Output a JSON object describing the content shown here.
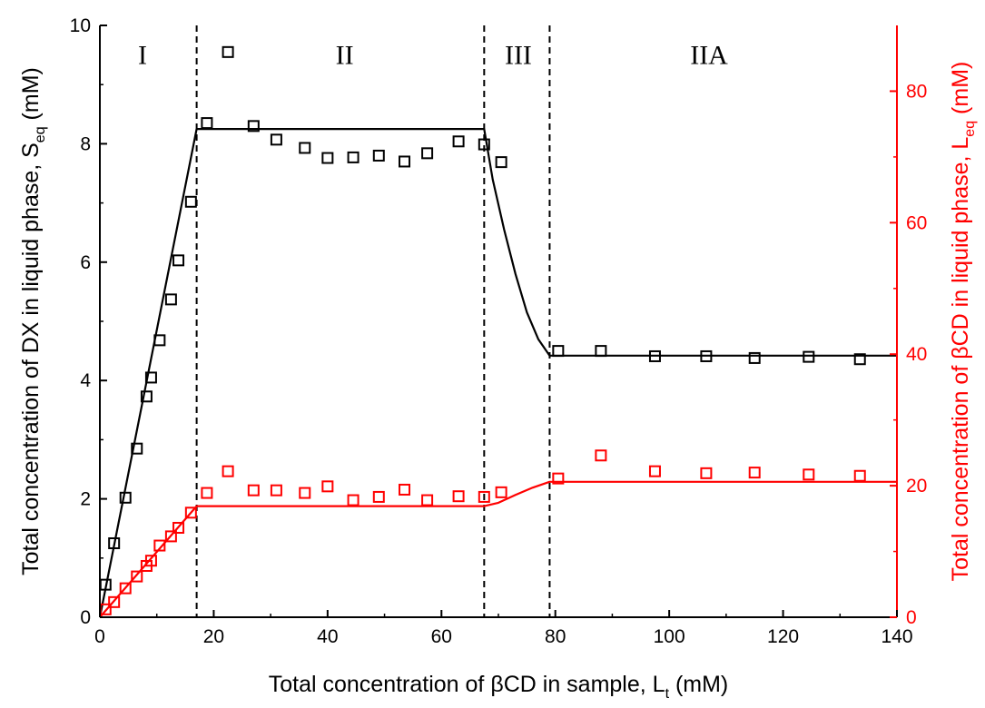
{
  "chart_data": {
    "type": "scatter",
    "x_axis": {
      "label_main": "Total concentration of βCD in sample, L",
      "label_sub": "t",
      "label_unit": " (mM)",
      "range": [
        0,
        140
      ],
      "ticks": [
        0,
        20,
        40,
        60,
        80,
        100,
        120,
        140
      ]
    },
    "y_left_axis": {
      "label_main": "Total concentration of DX in liquid phase, S",
      "label_sub": "eq",
      "label_unit": " (mM)",
      "range": [
        0,
        10
      ],
      "ticks": [
        0,
        2,
        4,
        6,
        8,
        10
      ],
      "color": "#000000"
    },
    "y_right_axis": {
      "label_main": "Total concentration of βCD in liquid phase, L",
      "label_sub": "eq",
      "label_unit": " (mM)",
      "range": [
        0,
        90
      ],
      "ticks": [
        0,
        20,
        40,
        60,
        80
      ],
      "color": "#ff0000"
    },
    "region_boundaries": [
      17,
      67.5,
      79
    ],
    "regions": [
      {
        "label": "I",
        "x": 7.5,
        "y": 9.5
      },
      {
        "label": "II",
        "x": 43,
        "y": 9.5
      },
      {
        "label": "III",
        "x": 73.5,
        "y": 9.5
      },
      {
        "label": "IIA",
        "x": 107,
        "y": 9.5
      }
    ],
    "series": [
      {
        "axis": "left",
        "color": "#000000",
        "points": [
          [
            1,
            0.55
          ],
          [
            2.5,
            1.25
          ],
          [
            4.5,
            2.02
          ],
          [
            6.5,
            2.85
          ],
          [
            8.2,
            3.73
          ],
          [
            9,
            4.05
          ],
          [
            10.5,
            4.68
          ],
          [
            12.5,
            5.37
          ],
          [
            13.8,
            6.03
          ],
          [
            16,
            7.02
          ],
          [
            18.8,
            8.35
          ],
          [
            22.5,
            9.55
          ],
          [
            27,
            8.3
          ],
          [
            31,
            8.07
          ],
          [
            36,
            7.93
          ],
          [
            40,
            7.76
          ],
          [
            44.5,
            7.77
          ],
          [
            49,
            7.8
          ],
          [
            53.5,
            7.7
          ],
          [
            57.5,
            7.84
          ],
          [
            63,
            8.04
          ],
          [
            67.5,
            7.99
          ],
          [
            70.5,
            7.69
          ],
          [
            80.5,
            4.5
          ],
          [
            88,
            4.5
          ],
          [
            97.5,
            4.41
          ],
          [
            106.5,
            4.41
          ],
          [
            115,
            4.38
          ],
          [
            124.5,
            4.4
          ],
          [
            133.5,
            4.36
          ]
        ]
      },
      {
        "axis": "right",
        "color": "#ff0000",
        "points": [
          [
            1,
            1.2
          ],
          [
            2.5,
            2.3
          ],
          [
            4.5,
            4.4
          ],
          [
            6.5,
            6.2
          ],
          [
            8.2,
            7.8
          ],
          [
            9,
            8.6
          ],
          [
            10.5,
            10.9
          ],
          [
            12.5,
            12.3
          ],
          [
            13.8,
            13.6
          ],
          [
            16,
            15.9
          ],
          [
            18.8,
            18.9
          ],
          [
            22.5,
            22.2
          ],
          [
            27,
            19.3
          ],
          [
            31,
            19.3
          ],
          [
            36,
            18.9
          ],
          [
            40,
            19.9
          ],
          [
            44.5,
            17.8
          ],
          [
            49,
            18.3
          ],
          [
            53.5,
            19.4
          ],
          [
            57.5,
            17.8
          ],
          [
            63,
            18.4
          ],
          [
            67.5,
            18.3
          ],
          [
            70.5,
            19.0
          ],
          [
            80.5,
            21.1
          ],
          [
            88,
            24.6
          ],
          [
            97.5,
            22.2
          ],
          [
            106.5,
            21.9
          ],
          [
            115,
            22.0
          ],
          [
            124.5,
            21.7
          ],
          [
            133.5,
            21.5
          ]
        ]
      }
    ],
    "fit_lines": [
      {
        "axis": "left",
        "color": "#000000",
        "points": [
          [
            0,
            0
          ],
          [
            17,
            8.25
          ],
          [
            67.5,
            8.25
          ],
          [
            69,
            7.4
          ],
          [
            71,
            6.55
          ],
          [
            73,
            5.8
          ],
          [
            75,
            5.15
          ],
          [
            77,
            4.7
          ],
          [
            79,
            4.42
          ],
          [
            140,
            4.42
          ]
        ]
      },
      {
        "axis": "right",
        "color": "#ff0000",
        "points": [
          [
            0,
            0
          ],
          [
            17,
            16.9
          ],
          [
            67.5,
            16.9
          ],
          [
            70,
            17.4
          ],
          [
            73,
            18.6
          ],
          [
            76,
            19.7
          ],
          [
            79,
            20.6
          ],
          [
            140,
            20.6
          ]
        ]
      }
    ]
  }
}
